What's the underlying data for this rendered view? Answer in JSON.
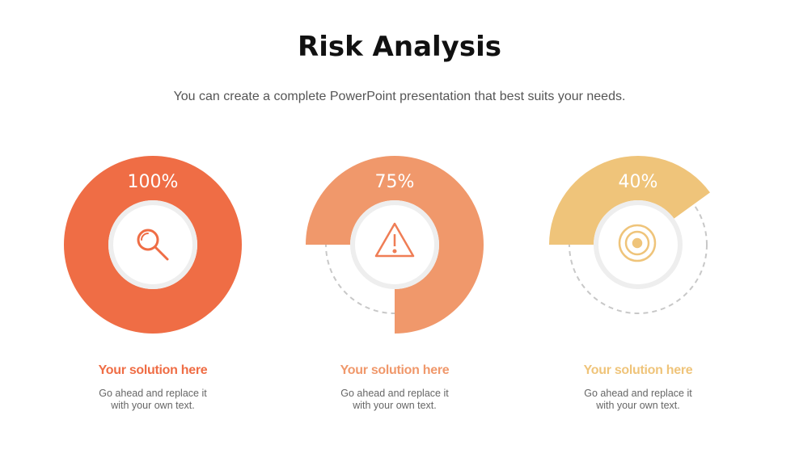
{
  "header": {
    "title": "Risk Analysis",
    "subtitle": "You can create a complete PowerPoint presentation that best suits your needs."
  },
  "chart_data": [
    {
      "type": "donut",
      "values": [
        100
      ],
      "value_labels": [
        "100%"
      ],
      "ylim": [
        0,
        100
      ],
      "color": "#ef6d45",
      "title": "Your solution here",
      "text": "Go ahead and replace it with your own text."
    },
    {
      "type": "donut",
      "values": [
        75
      ],
      "value_labels": [
        "75%"
      ],
      "ylim": [
        0,
        100
      ],
      "color": "#f0986b",
      "title": "Your solution here",
      "text": "Go ahead and replace it with your own text."
    },
    {
      "type": "donut",
      "values": [
        40
      ],
      "value_labels": [
        "40%"
      ],
      "ylim": [
        0,
        100
      ],
      "color": "#efc47a",
      "title": "Your solution here",
      "text": "Go ahead and replace it with your own text."
    }
  ]
}
